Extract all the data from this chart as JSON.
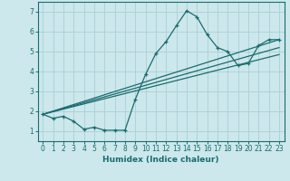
{
  "xlabel": "Humidex (Indice chaleur)",
  "bg_color": "#cce8ec",
  "grid_color": "#aacfd4",
  "line_color": "#1a6b6e",
  "xlim": [
    -0.5,
    23.5
  ],
  "ylim": [
    0.5,
    7.5
  ],
  "xticks": [
    0,
    1,
    2,
    3,
    4,
    5,
    6,
    7,
    8,
    9,
    10,
    11,
    12,
    13,
    14,
    15,
    16,
    17,
    18,
    19,
    20,
    21,
    22,
    23
  ],
  "yticks": [
    1,
    2,
    3,
    4,
    5,
    6,
    7
  ],
  "main_x": [
    0,
    1,
    2,
    3,
    4,
    5,
    6,
    7,
    8,
    9,
    10,
    11,
    12,
    13,
    14,
    15,
    16,
    17,
    18,
    19,
    20,
    21,
    22,
    23
  ],
  "main_y": [
    1.85,
    1.65,
    1.75,
    1.5,
    1.1,
    1.2,
    1.05,
    1.05,
    1.05,
    2.6,
    3.85,
    4.9,
    5.5,
    6.3,
    7.05,
    6.75,
    5.85,
    5.2,
    5.0,
    4.3,
    4.4,
    5.3,
    5.6,
    5.6
  ],
  "line1_x": [
    0,
    23
  ],
  "line1_y": [
    1.85,
    5.6
  ],
  "line2_x": [
    0,
    23
  ],
  "line2_y": [
    1.85,
    5.2
  ],
  "line3_x": [
    0,
    23
  ],
  "line3_y": [
    1.85,
    4.85
  ]
}
